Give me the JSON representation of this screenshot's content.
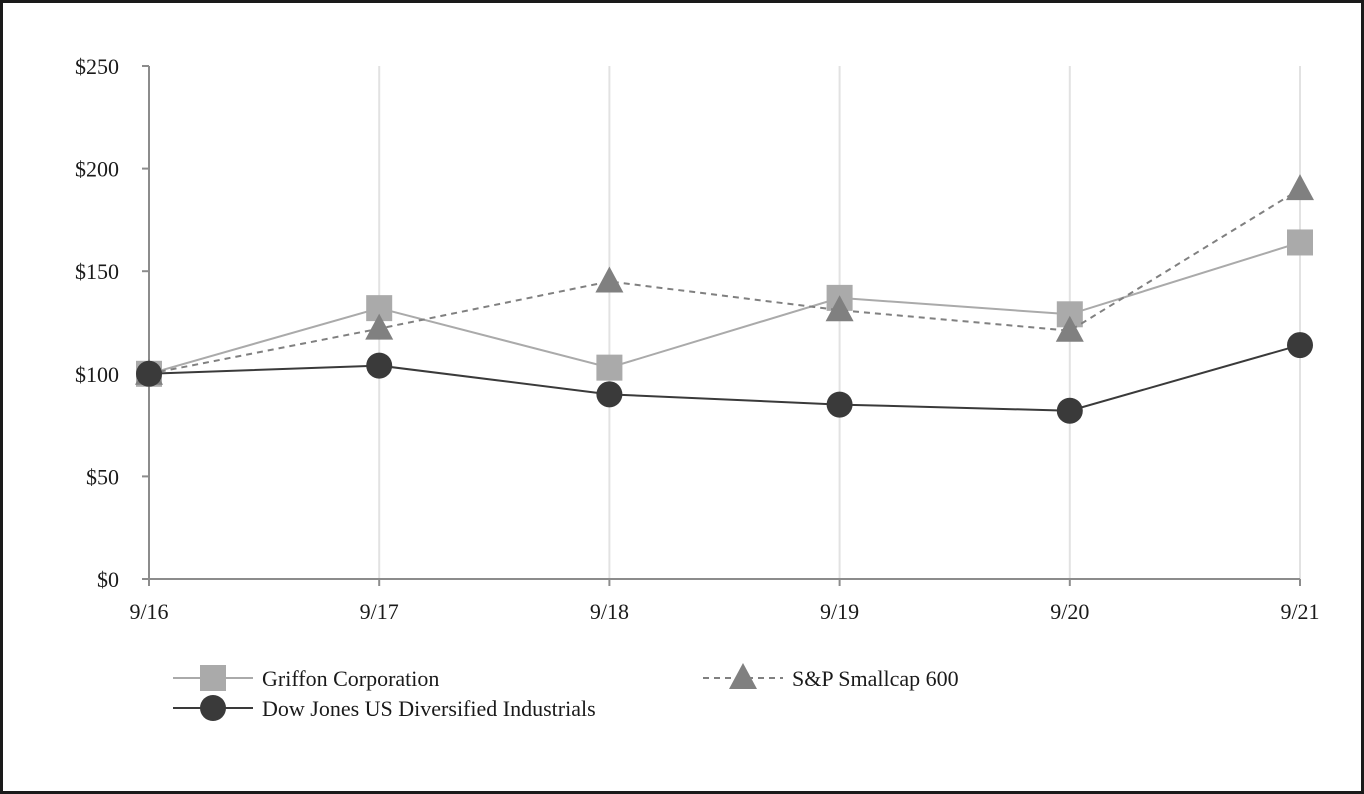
{
  "chart_data": {
    "type": "line",
    "title": "",
    "xlabel": "",
    "ylabel": "",
    "categories": [
      "9/16",
      "9/17",
      "9/18",
      "9/19",
      "9/20",
      "9/21"
    ],
    "ylim": [
      0,
      250
    ],
    "yticks": [
      0,
      50,
      100,
      150,
      200,
      250
    ],
    "ytick_labels": [
      "$0",
      "$50",
      "$100",
      "$150",
      "$200",
      "$250"
    ],
    "grid": "vertical",
    "legend_position": "bottom",
    "series": [
      {
        "name": "Griffon Corporation",
        "values": [
          100,
          132,
          103,
          137,
          129,
          164
        ],
        "color": "#aaaaaa",
        "marker": "square",
        "line_style": "solid"
      },
      {
        "name": "S&P Smallcap 600",
        "values": [
          100,
          122,
          145,
          131,
          121,
          190
        ],
        "color": "#808080",
        "marker": "triangle",
        "line_style": "dashed"
      },
      {
        "name": "Dow Jones US Diversified Industrials",
        "values": [
          100,
          104,
          90,
          85,
          82,
          114
        ],
        "color": "#3a3a3a",
        "marker": "circle",
        "line_style": "solid"
      }
    ]
  }
}
